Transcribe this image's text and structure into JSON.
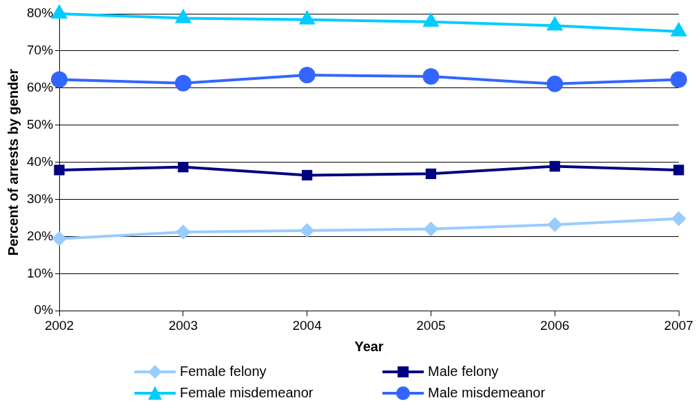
{
  "chart_data": {
    "type": "line",
    "xlabel": "Year",
    "ylabel": "Percent of arrests by gender",
    "categories": [
      "2002",
      "2003",
      "2004",
      "2005",
      "2006",
      "2007"
    ],
    "ylim": [
      0,
      80
    ],
    "yticks": [
      {
        "value": 0,
        "label": "0%"
      },
      {
        "value": 10,
        "label": "10%"
      },
      {
        "value": 20,
        "label": "20%"
      },
      {
        "value": 30,
        "label": "30%"
      },
      {
        "value": 40,
        "label": "40%"
      },
      {
        "value": 50,
        "label": "50%"
      },
      {
        "value": 60,
        "label": "60%"
      },
      {
        "value": 70,
        "label": "70%"
      },
      {
        "value": 80,
        "label": "80%"
      }
    ],
    "grid": "y",
    "legend": "bottom",
    "series": [
      {
        "name": "Female felony",
        "color": "#99ccff",
        "marker": "diamond",
        "values": [
          19.4,
          21.2,
          21.6,
          22.0,
          23.2,
          24.8
        ]
      },
      {
        "name": "Male felony",
        "color": "#000080",
        "marker": "square",
        "values": [
          37.9,
          38.7,
          36.5,
          36.9,
          38.9,
          37.9
        ]
      },
      {
        "name": "Female misdemeanor",
        "color": "#00ccff",
        "marker": "triangle",
        "values": [
          80.0,
          78.8,
          78.4,
          77.8,
          76.8,
          75.2
        ]
      },
      {
        "name": "Male misdemeanor",
        "color": "#3366ff",
        "marker": "circle",
        "values": [
          62.3,
          61.3,
          63.5,
          63.1,
          61.1,
          62.3
        ]
      }
    ]
  }
}
